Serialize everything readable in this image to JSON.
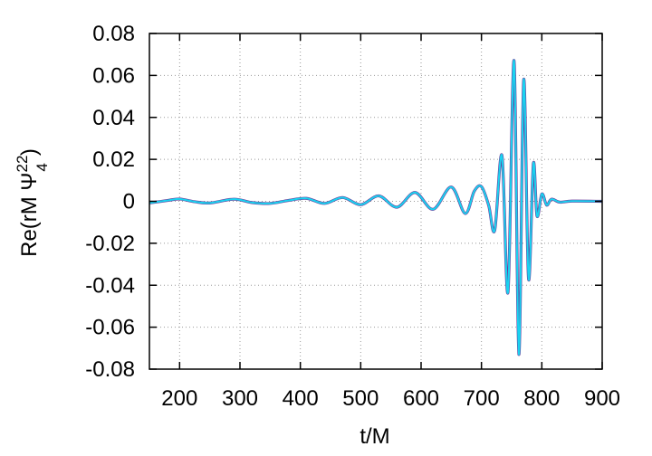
{
  "chart_data": {
    "type": "line",
    "title": "",
    "xlabel": "t/M",
    "ylabel": {
      "prefix": "Re(rM ",
      "symbol": "Ψ",
      "superscript": "22",
      "subscript": "4",
      "suffix": ")"
    },
    "xlim": [
      150,
      900
    ],
    "ylim": [
      -0.08,
      0.08
    ],
    "x_ticks": [
      200,
      300,
      400,
      500,
      600,
      700,
      800,
      900
    ],
    "y_ticks": [
      0.08,
      0.06,
      0.04,
      0.02,
      0,
      -0.02,
      -0.04,
      -0.06,
      -0.08
    ],
    "x_tick_labels": [
      "200",
      "300",
      "400",
      "500",
      "600",
      "700",
      "800",
      "900"
    ],
    "y_tick_labels": [
      "0.08",
      "0.06",
      "0.04",
      "0.02",
      "0",
      "-0.02",
      "-0.04",
      "-0.06",
      "-0.08"
    ],
    "grid": true,
    "legend": "none",
    "series": [
      {
        "color": "#6a3d9a",
        "points": [
          [
            150,
            -0.0008
          ],
          [
            180,
            0.0004
          ],
          [
            200,
            0.0011
          ],
          [
            225,
            -0.0002
          ],
          [
            250,
            -0.0008
          ],
          [
            290,
            0.001
          ],
          [
            320,
            -0.0006
          ],
          [
            350,
            -0.001
          ],
          [
            380,
            0.0004
          ],
          [
            410,
            0.0014
          ],
          [
            440,
            -0.001
          ],
          [
            470,
            0.0018
          ],
          [
            500,
            -0.0016
          ],
          [
            530,
            0.0026
          ],
          [
            560,
            -0.0028
          ],
          [
            590,
            0.0042
          ],
          [
            620,
            -0.0038
          ],
          [
            650,
            0.0068
          ],
          [
            673,
            -0.0058
          ],
          [
            688,
            0.0048
          ],
          [
            700,
            0.007
          ],
          [
            712,
            -0.002
          ],
          [
            722,
            -0.0138
          ],
          [
            734,
            0.0218
          ],
          [
            744,
            -0.0432
          ],
          [
            754,
            0.067
          ],
          [
            762,
            -0.073
          ],
          [
            770,
            0.058
          ],
          [
            778,
            -0.037
          ],
          [
            786,
            0.018
          ],
          [
            792,
            -0.007
          ],
          [
            800,
            0.0035
          ],
          [
            808,
            -0.0018
          ],
          [
            816,
            0.001
          ],
          [
            830,
            -0.0004
          ],
          [
            850,
            0.0001
          ],
          [
            900,
            0.0
          ]
        ]
      },
      {
        "color": "#19d3f0",
        "points": [
          [
            150,
            -0.0008
          ],
          [
            180,
            0.0004
          ],
          [
            200,
            0.0011
          ],
          [
            225,
            -0.0002
          ],
          [
            250,
            -0.0008
          ],
          [
            290,
            0.001
          ],
          [
            320,
            -0.0006
          ],
          [
            350,
            -0.001
          ],
          [
            380,
            0.0004
          ],
          [
            410,
            0.0014
          ],
          [
            440,
            -0.001
          ],
          [
            470,
            0.0018
          ],
          [
            500,
            -0.0016
          ],
          [
            530,
            0.0026
          ],
          [
            560,
            -0.0028
          ],
          [
            590,
            0.0042
          ],
          [
            620,
            -0.0038
          ],
          [
            650,
            0.0068
          ],
          [
            673,
            -0.0058
          ],
          [
            688,
            0.0048
          ],
          [
            700,
            0.007
          ],
          [
            712,
            -0.002
          ],
          [
            722,
            -0.0138
          ],
          [
            734,
            0.0218
          ],
          [
            744,
            -0.0432
          ],
          [
            754,
            0.067
          ],
          [
            762,
            -0.073
          ],
          [
            770,
            0.058
          ],
          [
            778,
            -0.037
          ],
          [
            786,
            0.018
          ],
          [
            792,
            -0.007
          ],
          [
            800,
            0.0035
          ],
          [
            808,
            -0.0018
          ],
          [
            816,
            0.001
          ],
          [
            830,
            -0.0004
          ],
          [
            850,
            0.0001
          ],
          [
            900,
            0.0
          ]
        ]
      }
    ]
  }
}
